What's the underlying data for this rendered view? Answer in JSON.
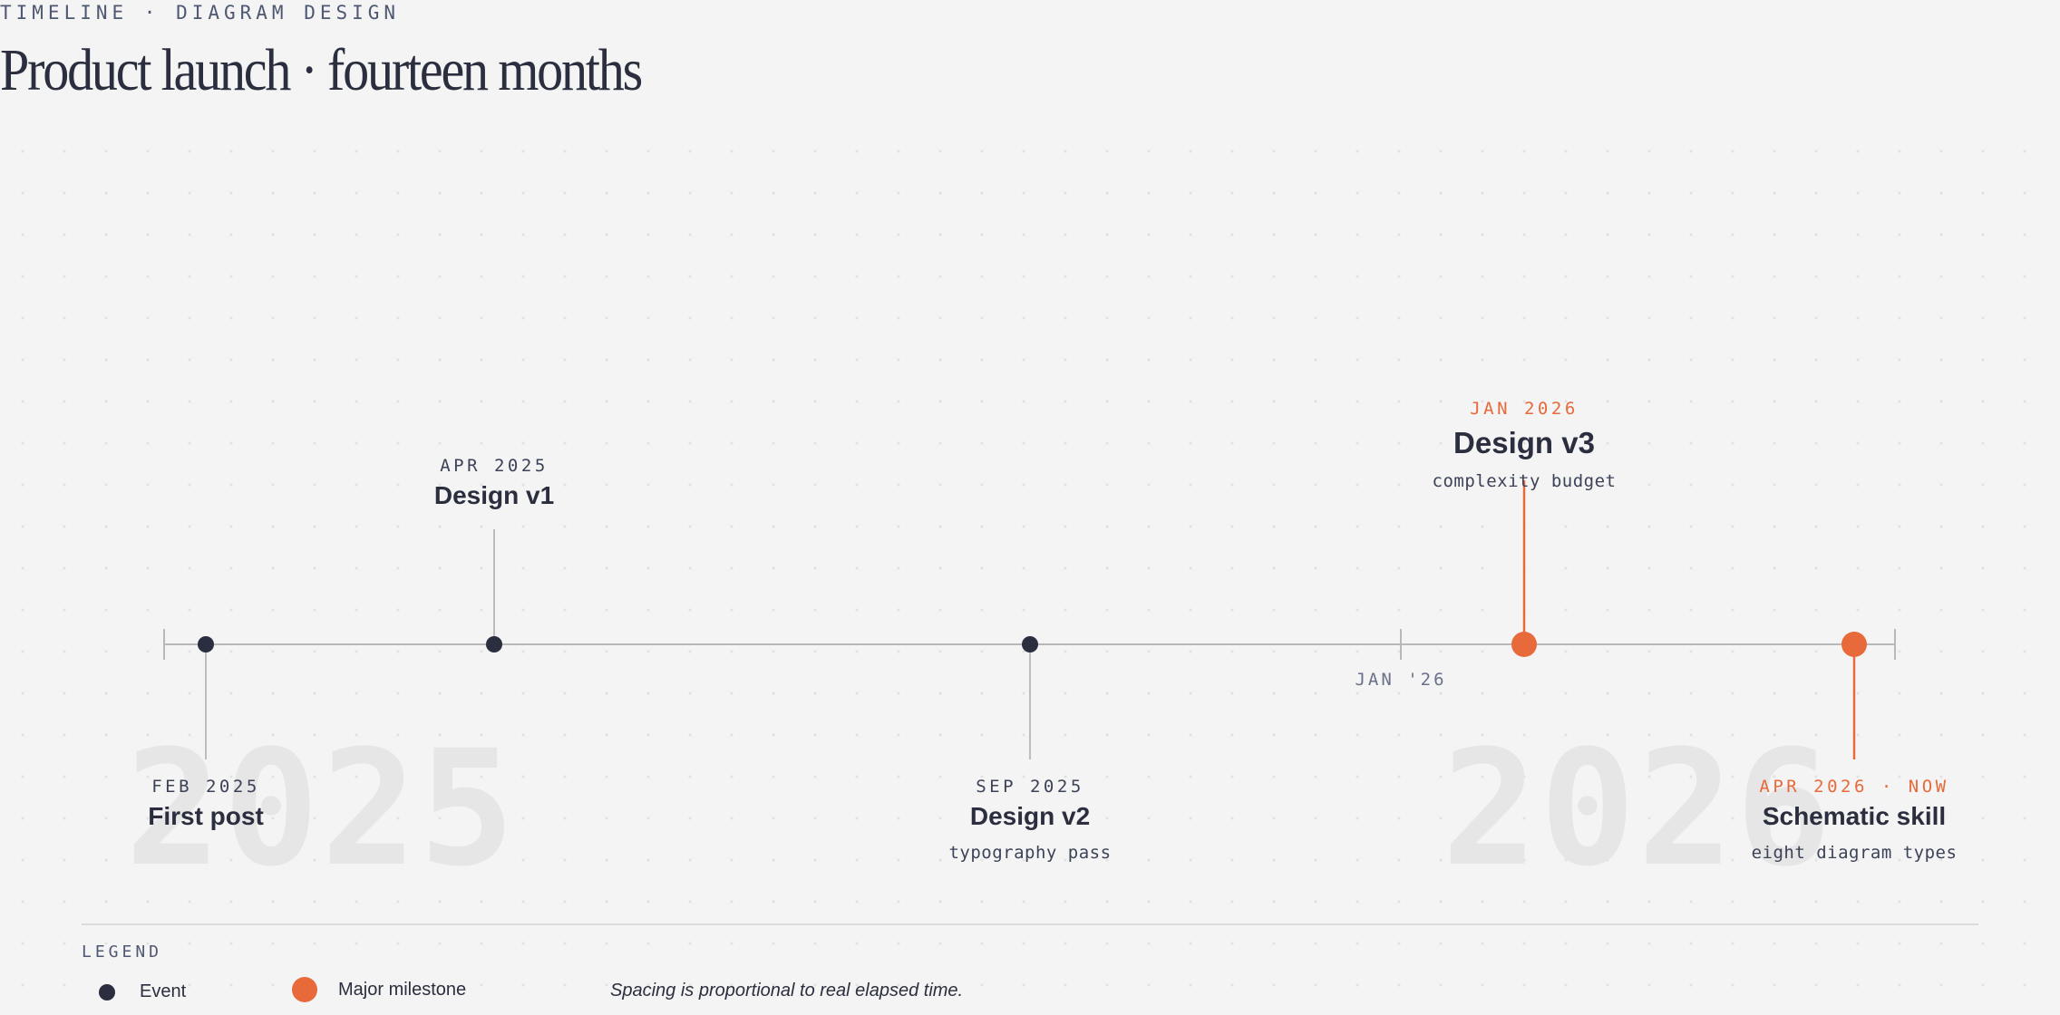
{
  "header": {
    "eyebrow": "TIMELINE · DIAGRAM DESIGN",
    "title": "Product launch · fourteen months"
  },
  "year_watermarks": [
    "2025",
    "2026"
  ],
  "axis": {
    "start": "2025-01",
    "end": "2026-05",
    "tick_label": "JAN '26"
  },
  "events": [
    {
      "date_label": "FEB 2025",
      "title": "First post",
      "subtitle": "",
      "kind": "event"
    },
    {
      "date_label": "APR 2025",
      "title": "Design v1",
      "subtitle": "",
      "kind": "event"
    },
    {
      "date_label": "SEP 2025",
      "title": "Design v2",
      "subtitle": "typography pass",
      "kind": "event"
    },
    {
      "date_label": "JAN 2026",
      "title": "Design v3",
      "subtitle": "complexity budget",
      "kind": "major"
    },
    {
      "date_label": "APR 2026 · NOW",
      "title": "Schematic skill",
      "subtitle": "eight diagram types",
      "kind": "major"
    }
  ],
  "legend": {
    "title": "LEGEND",
    "event_label": "Event",
    "major_label": "Major milestone",
    "note": "Spacing is proportional to real elapsed time."
  },
  "colors": {
    "ink": "#2a2e3e",
    "accent": "#e8693a",
    "axis": "#b8b8b8",
    "connector": "#bdbdbd"
  }
}
